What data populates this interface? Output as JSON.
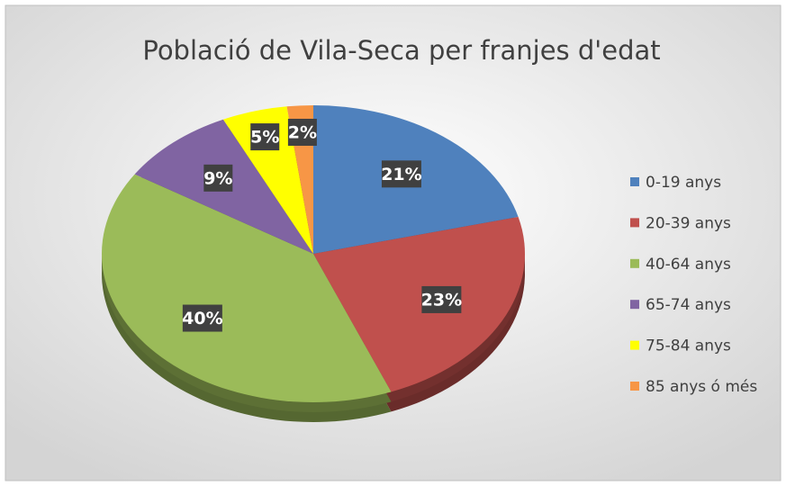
{
  "chart_data": {
    "type": "pie",
    "title": "Població de Vila-Seca per franjes d'edat",
    "categories": [
      "0-19 anys",
      "20-39 anys",
      "40-64 anys",
      "65-74 anys",
      "75-84 anys",
      "85 anys ó més"
    ],
    "values": [
      21,
      23,
      40,
      9,
      5,
      2
    ],
    "value_labels": [
      "21%",
      "23%",
      "40%",
      "9%",
      "5%",
      "2%"
    ],
    "colors": [
      "#4f81bd",
      "#c0504d",
      "#9bbb59",
      "#8064a2",
      "#ffff00",
      "#f79646"
    ],
    "legend": "right"
  }
}
